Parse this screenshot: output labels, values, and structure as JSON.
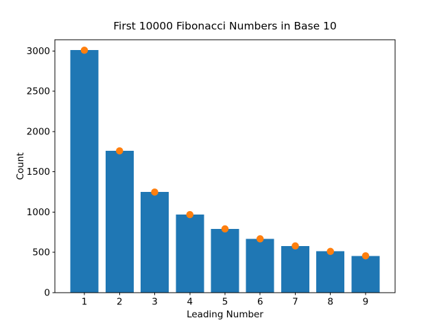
{
  "figure": {
    "background_color": "#ffffff",
    "text_color": "#000000",
    "spine_color": "#000000"
  },
  "chart_data": {
    "type": "bar",
    "title": "First 10000 Fibonacci Numbers in Base 10",
    "xlabel": "Leading Number",
    "ylabel": "Count",
    "categories": [
      1,
      2,
      3,
      4,
      5,
      6,
      7,
      8,
      9
    ],
    "series": [
      {
        "name": "observed-leading-digit-counts",
        "type": "bar",
        "color": "#1f77b4",
        "values": [
          3011,
          1762,
          1250,
          968,
          792,
          668,
          580,
          513,
          456
        ]
      },
      {
        "name": "benford-expected-counts",
        "type": "scatter",
        "color": "#ff7f0e",
        "values": [
          3010,
          1761,
          1249,
          969,
          792,
          669,
          580,
          512,
          458
        ]
      }
    ],
    "xticks": [
      1,
      2,
      3,
      4,
      5,
      6,
      7,
      8,
      9
    ],
    "yticks": [
      0,
      500,
      1000,
      1500,
      2000,
      2500,
      3000
    ],
    "xlim": [
      0.16,
      9.84
    ],
    "ylim": [
      0,
      3140
    ],
    "bar_width": 0.8,
    "marker_diameter": 10.5,
    "grid": false,
    "legend": "none"
  }
}
